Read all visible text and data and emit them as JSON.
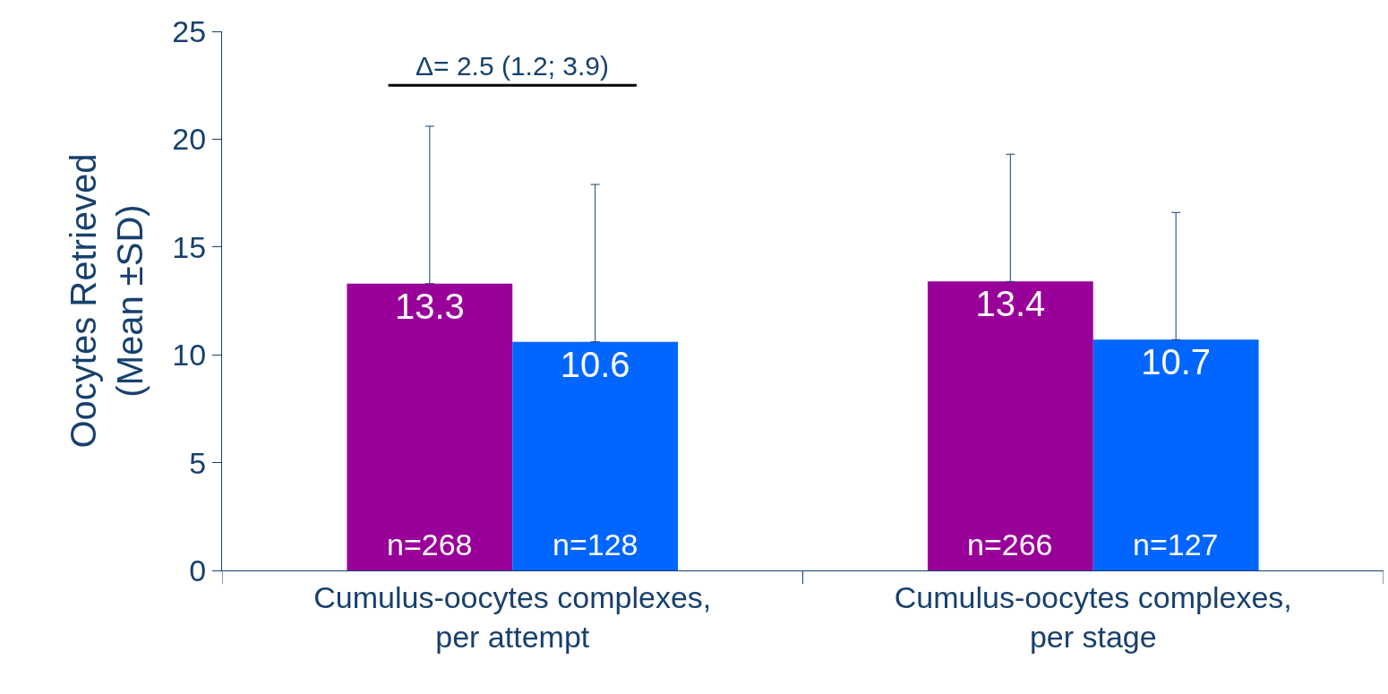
{
  "chart_data": {
    "type": "bar",
    "ylabel": "Oocytes Retrieved\n(Mean ±SD)",
    "categories": [
      "Cumulus-oocytes complexes,\nper attempt",
      "Cumulus-oocytes complexes,\nper stage"
    ],
    "series": [
      {
        "color": "#990099",
        "values": [
          13.3,
          13.4
        ],
        "errors": [
          [
            13.3,
            20.6
          ],
          [
            13.4,
            19.3
          ]
        ]
      },
      {
        "color": "#0066ff",
        "values": [
          10.6,
          10.7
        ],
        "errors": [
          [
            10.6,
            17.9
          ],
          [
            10.7,
            16.6
          ]
        ]
      }
    ],
    "ylim": [
      0,
      25
    ],
    "yticks": [
      0,
      5,
      10,
      15,
      20,
      25
    ],
    "data_labels": true,
    "annotations": [
      "Δ= 2.5 (1.2; 3.9)",
      {
        "text": "n=268",
        "x": "Cumulus-oocytes complexes,\nper attempt",
        "y": 0
      },
      {
        "text": "n=128",
        "x": "Cumulus-oocytes complexes,\nper attempt",
        "y": 0
      },
      {
        "text": "n=266",
        "x": "Cumulus-oocytes complexes,\nper stage",
        "y": 0
      },
      {
        "text": "n=127",
        "x": "Cumulus-oocytes complexes,\nper stage",
        "y": 0
      }
    ]
  }
}
